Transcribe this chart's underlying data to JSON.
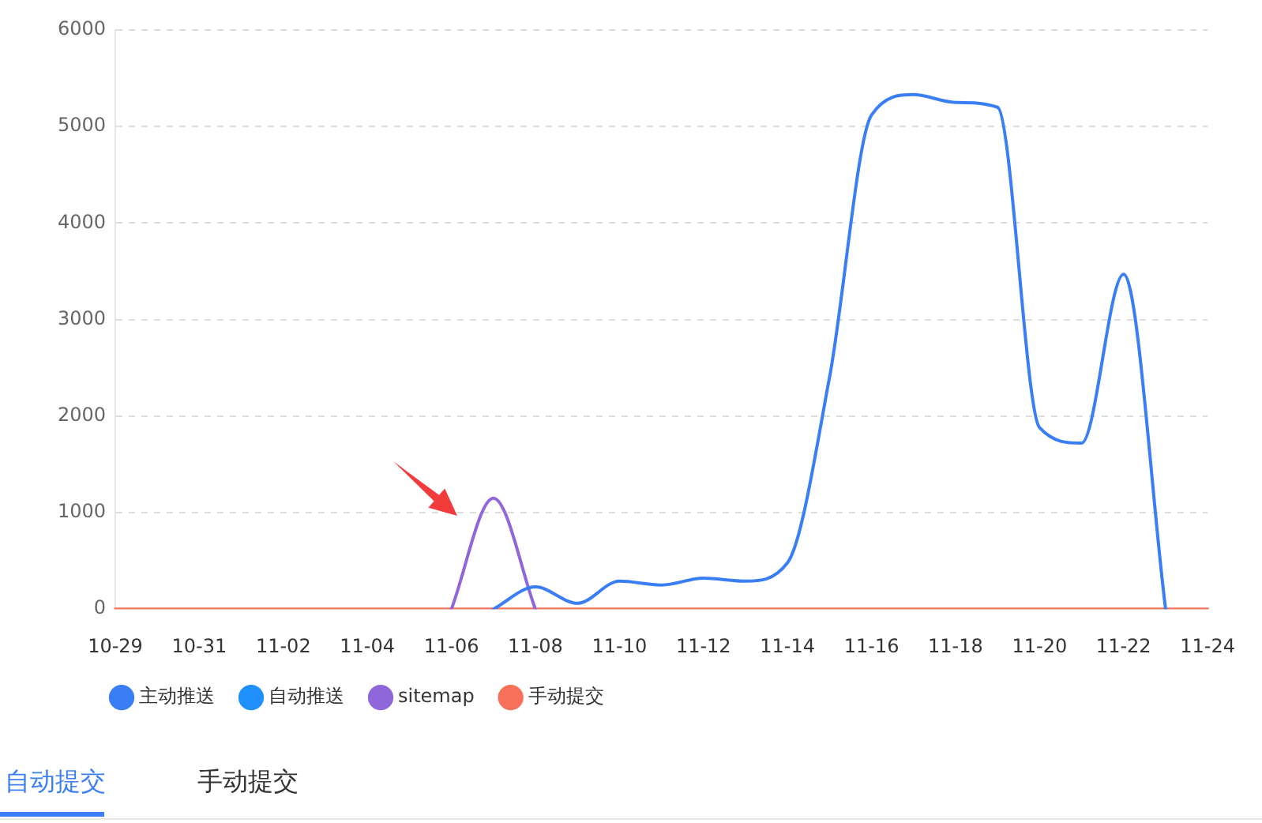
{
  "chart_data": {
    "type": "line",
    "categories": [
      "10-29",
      null,
      "10-31",
      null,
      "11-02",
      null,
      "11-04",
      null,
      "11-06",
      null,
      "11-08",
      null,
      "11-10",
      null,
      "11-12",
      null,
      "11-14",
      null,
      "11-16",
      null,
      "11-18",
      null,
      "11-20",
      null,
      "11-22",
      null,
      "11-24"
    ],
    "series": [
      {
        "name": "主动推送",
        "color": "#3a7ef5",
        "values": [
          null,
          null,
          null,
          null,
          null,
          null,
          null,
          null,
          null,
          0,
          230,
          60,
          290,
          250,
          320,
          290,
          480,
          2400,
          5120,
          5330,
          5250,
          5200,
          1880,
          1720,
          3470,
          0,
          null
        ]
      },
      {
        "name": "自动推送",
        "color": "#1f90fb",
        "values": [
          null,
          null,
          null,
          null,
          null,
          null,
          null,
          null,
          null,
          null,
          null,
          null,
          null,
          null,
          null,
          null,
          null,
          null,
          null,
          null,
          null,
          null,
          null,
          null,
          null,
          null,
          null
        ]
      },
      {
        "name": "sitemap",
        "color": "#9067db",
        "values": [
          null,
          null,
          null,
          null,
          null,
          null,
          null,
          null,
          0,
          1150,
          0,
          null,
          null,
          null,
          null,
          null,
          null,
          null,
          null,
          null,
          null,
          null,
          null,
          null,
          null,
          null,
          null
        ]
      },
      {
        "name": "手动提交",
        "color": "#f7705a",
        "values": [
          0,
          0,
          0,
          0,
          0,
          0,
          0,
          0,
          0,
          0,
          0,
          0,
          0,
          0,
          0,
          0,
          0,
          0,
          0,
          0,
          0,
          0,
          0,
          0,
          0,
          0,
          0
        ]
      }
    ],
    "ylim": [
      0,
      6000
    ],
    "yticks": [
      0,
      1000,
      2000,
      3000,
      4000,
      5000,
      6000
    ],
    "grid": "y",
    "legend": "bottom left",
    "marker": "none",
    "annotations": [
      "自动提交",
      "手动提交"
    ]
  }
}
